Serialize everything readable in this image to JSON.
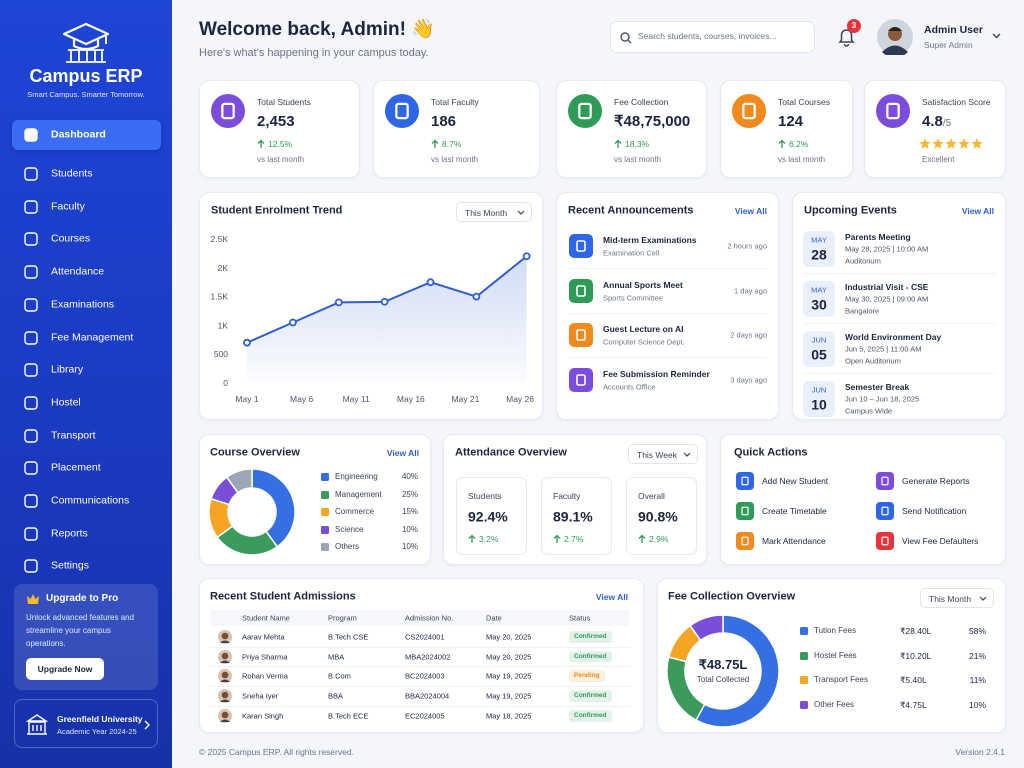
{
  "sidebar": {
    "brand": "Campus ERP",
    "tagline": "Smart Campus. Smarter Tomorrow.",
    "nav": [
      "Dashboard",
      "Students",
      "Faculty",
      "Courses",
      "Attendance",
      "Examinations",
      "Fee Management",
      "Library",
      "Hostel",
      "Transport",
      "Placement",
      "Communications",
      "Reports",
      "Settings"
    ],
    "upgrade": {
      "title": "Upgrade to Pro",
      "text": "Unlock advanced features and streamline your campus operations.",
      "button": "Upgrade Now"
    },
    "university": {
      "name": "Greenfield University",
      "year": "Academic Year 2024-25"
    }
  },
  "header": {
    "title": "Welcome back, Admin! 👋",
    "subtitle": "Here's what's happening in your campus today.",
    "search": "Search students, courses, invoices...",
    "notifications": "3",
    "user": "Admin User",
    "role": "Super Admin"
  },
  "stats": [
    {
      "label": "Total Students",
      "value": "2,453",
      "change": "12.5%",
      "note": "vs last month"
    },
    {
      "label": "Total Faculty",
      "value": "186",
      "change": "8.7%",
      "note": "vs last month"
    },
    {
      "label": "Fee Collection",
      "value": "₹48,75,000",
      "change": "18.3%",
      "note": "vs last month"
    },
    {
      "label": "Total Courses",
      "value": "124",
      "change": "6.2%",
      "note": "vs last month"
    },
    {
      "label": "Satisfaction Score",
      "value": "4.8",
      "suffix": "/5",
      "note": "Excellent"
    }
  ],
  "chart_data": [
    {
      "type": "line",
      "title": "Student Enrolment Trend",
      "dropdown": "This Month",
      "x": [
        1,
        5.2,
        9.4,
        13.6,
        17.8,
        22,
        26.6
      ],
      "values": [
        700,
        1050,
        1400,
        1410,
        1750,
        1500,
        2200
      ],
      "xlim": [
        1,
        27
      ],
      "xticks": [
        {
          "value": 1,
          "label": "May 1"
        },
        {
          "value": 6,
          "label": "May 6"
        },
        {
          "value": 11,
          "label": "May 11"
        },
        {
          "value": 16,
          "label": "May 16"
        },
        {
          "value": 21,
          "label": "May 21"
        },
        {
          "value": 26,
          "label": "May 26"
        }
      ],
      "ylim": [
        0,
        2500
      ],
      "yticks": [
        0,
        500,
        {
          "value": 1000,
          "label": "1K"
        },
        {
          "value": 1500,
          "label": "1.5K"
        },
        {
          "value": 2000,
          "label": "2K"
        },
        {
          "value": 2500,
          "label": "2.5K"
        }
      ],
      "color": "#2f5fd0",
      "grid": false
    },
    {
      "type": "pie",
      "title": "Course Overview",
      "link": "View All",
      "categories": [
        "Engineering",
        "Management",
        "Commerce",
        "Science",
        "Others"
      ],
      "values": [
        40,
        25,
        15,
        10,
        10
      ],
      "value_labels": [
        "40%",
        "25%",
        "15%",
        "10%",
        "10%"
      ],
      "colors": [
        "#3570e3",
        "#3a9b5c",
        "#f5a524",
        "#7a4fd8",
        "#9ba6b9"
      ]
    },
    {
      "type": "pie",
      "title": "Fee Collection Overview",
      "dropdown": "This Month",
      "center_value": "₹48.75L",
      "center_label": "Total Collected",
      "categories": [
        "Tution Fees",
        "Hostel Fees",
        "Transport Fees",
        "Other Fees"
      ],
      "amounts": [
        "₹28.40L",
        "₹10.20L",
        "₹5.40L",
        "₹4.75L"
      ],
      "values": [
        58,
        21,
        11,
        10
      ],
      "value_labels": [
        "58%",
        "21%",
        "11%",
        "10%"
      ],
      "colors": [
        "#3570e3",
        "#3a9b5c",
        "#f5a524",
        "#7a4fd8"
      ]
    }
  ],
  "announcements": {
    "title": "Recent Announcements",
    "link": "View All",
    "items": [
      {
        "title": "Mid-term Examinations",
        "source": "Examination Cell",
        "time": "2 hours ago"
      },
      {
        "title": "Annual Sports Meet",
        "source": "Sports Committee",
        "time": "1 day ago"
      },
      {
        "title": "Guest Lecture on AI",
        "source": "Computer Science Dept.",
        "time": "2 days ago"
      },
      {
        "title": "Fee Submission Reminder",
        "source": "Accounts Office",
        "time": "3 days ago"
      }
    ]
  },
  "events": {
    "title": "Upcoming Events",
    "link": "View All",
    "items": [
      {
        "month": "MAY",
        "day": "28",
        "title": "Parents Meeting",
        "when": "May 28, 2025 | 10:00 AM",
        "place": "Auditorium"
      },
      {
        "month": "MAY",
        "day": "30",
        "title": "Industrial Visit - CSE",
        "when": "May 30, 2025 | 09:00 AM",
        "place": "Bangalore"
      },
      {
        "month": "JUN",
        "day": "05",
        "title": "World Environment Day",
        "when": "Jun 5, 2025 | 11:00 AM",
        "place": "Open Auditorium"
      },
      {
        "month": "JUN",
        "day": "10",
        "title": "Semester Break",
        "when": "Jun 10 – Jun 18, 2025",
        "place": "Campus Wide"
      }
    ]
  },
  "attendance": {
    "title": "Attendance Overview",
    "dropdown": "This Week",
    "items": [
      {
        "label": "Students",
        "value": "92.4%",
        "change": "3.2%"
      },
      {
        "label": "Faculty",
        "value": "89.1%",
        "change": "2.7%"
      },
      {
        "label": "Overall",
        "value": "90.8%",
        "change": "2.9%"
      }
    ]
  },
  "quick_actions": {
    "title": "Quick Actions",
    "items": [
      "Add New Student",
      "Generate Reports",
      "Create Timetable",
      "Send Notification",
      "Mark Attendance",
      "View Fee Defaulters"
    ]
  },
  "admissions": {
    "title": "Recent Student Admissions",
    "link": "View All",
    "columns": [
      "Student Name",
      "Program",
      "Admission No.",
      "Date",
      "Status"
    ],
    "rows": [
      {
        "name": "Aarav Mehta",
        "program": "B.Tech CSE",
        "admission_no": "CS2024001",
        "date": "May 20, 2025",
        "status": "Confirmed",
        "status_color": "#2e9b57"
      },
      {
        "name": "Priya Sharma",
        "program": "MBA",
        "admission_no": "MBA2024002",
        "date": "May 20, 2025",
        "status": "Confirmed",
        "status_color": "#2e9b57"
      },
      {
        "name": "Rohan Verma",
        "program": "B.Com",
        "admission_no": "BC2024003",
        "date": "May 19, 2025",
        "status": "Pending",
        "status_color": "#e58a12"
      },
      {
        "name": "Sneha Iyer",
        "program": "BBA",
        "admission_no": "BBA2024004",
        "date": "May 19, 2025",
        "status": "Confirmed",
        "status_color": "#2e9b57"
      },
      {
        "name": "Karan Singh",
        "program": "B.Tech ECE",
        "admission_no": "EC2024005",
        "date": "May 18, 2025",
        "status": "Confirmed",
        "status_color": "#2e9b57"
      }
    ]
  },
  "footer": {
    "copyright": "© 2025 Campus ERP. All rights reserved.",
    "version": "Version 2.4.1"
  }
}
